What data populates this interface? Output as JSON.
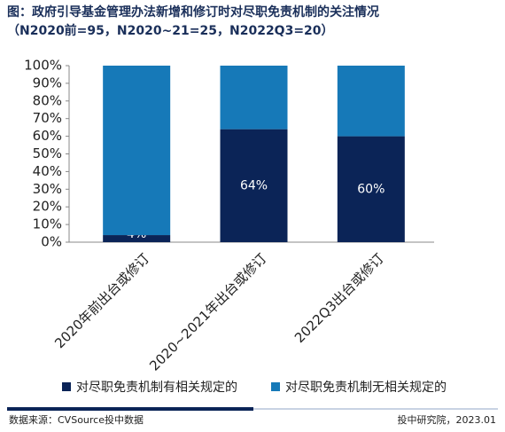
{
  "chart_data": {
    "type": "stacked_bar",
    "title": "图：政府引导基金管理办法新增和修订时对尽职免责机制的关注情况",
    "subtitle": "（N2020前=95，N2020~21=25，N2022Q3=20）",
    "categories": [
      "2020年前出台或修订",
      "2020~2021年出台或修订",
      "2022Q3出台或修订"
    ],
    "series": [
      {
        "name": "对尽职免责机制有相关规定的",
        "color": "#0b2457",
        "values": [
          4,
          64,
          60
        ],
        "value_labels": [
          "4%",
          "64%",
          "60%"
        ]
      },
      {
        "name": "对尽职免责机制无相关规定的",
        "color": "#1679b8",
        "values": [
          96,
          36,
          40
        ]
      }
    ],
    "ylim": [
      0,
      100
    ],
    "yticks": [
      {
        "value": 0,
        "label": "0%"
      },
      {
        "value": 10,
        "label": "10%"
      },
      {
        "value": 20,
        "label": "20%"
      },
      {
        "value": 30,
        "label": "30%"
      },
      {
        "value": 40,
        "label": "40%"
      },
      {
        "value": 50,
        "label": "50%"
      },
      {
        "value": 60,
        "label": "60%"
      },
      {
        "value": 70,
        "label": "70%"
      },
      {
        "value": 80,
        "label": "80%"
      },
      {
        "value": 90,
        "label": "90%"
      },
      {
        "value": 100,
        "label": "100%"
      }
    ],
    "legend": "bottom",
    "source": "数据来源：CVSource投中数据",
    "credit": "投中研究院，2023.01"
  }
}
